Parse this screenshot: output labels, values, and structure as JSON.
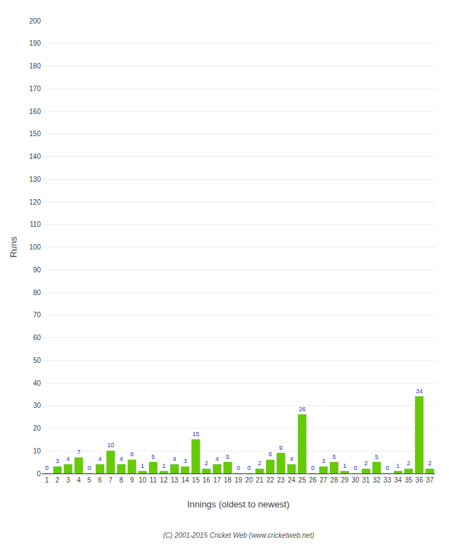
{
  "chart_data": {
    "type": "bar",
    "xlabel": "Innings (oldest to newest)",
    "ylabel": "Runs",
    "categories": [
      "1",
      "2",
      "3",
      "4",
      "5",
      "6",
      "7",
      "8",
      "9",
      "10",
      "11",
      "12",
      "13",
      "14",
      "15",
      "16",
      "17",
      "18",
      "19",
      "20",
      "21",
      "22",
      "23",
      "24",
      "25",
      "26",
      "27",
      "28",
      "29",
      "30",
      "31",
      "32",
      "33",
      "34",
      "35",
      "36",
      "37"
    ],
    "values": [
      0,
      3,
      4,
      7,
      0,
      4,
      10,
      4,
      6,
      1,
      5,
      1,
      4,
      3,
      15,
      2,
      4,
      5,
      0,
      0,
      2,
      6,
      9,
      4,
      26,
      0,
      3,
      5,
      1,
      0,
      2,
      5,
      0,
      1,
      2,
      34,
      2
    ],
    "color": "#66cc00",
    "ylim": [
      0,
      200
    ],
    "yticks": [
      0,
      10,
      20,
      30,
      40,
      50,
      60,
      70,
      80,
      90,
      100,
      110,
      120,
      130,
      140,
      150,
      160,
      170,
      180,
      190,
      200
    ],
    "grid": true,
    "data_labels": true,
    "annotations": [
      "(C) 2001-2015 Cricket Web (www.cricketweb.net)"
    ]
  }
}
